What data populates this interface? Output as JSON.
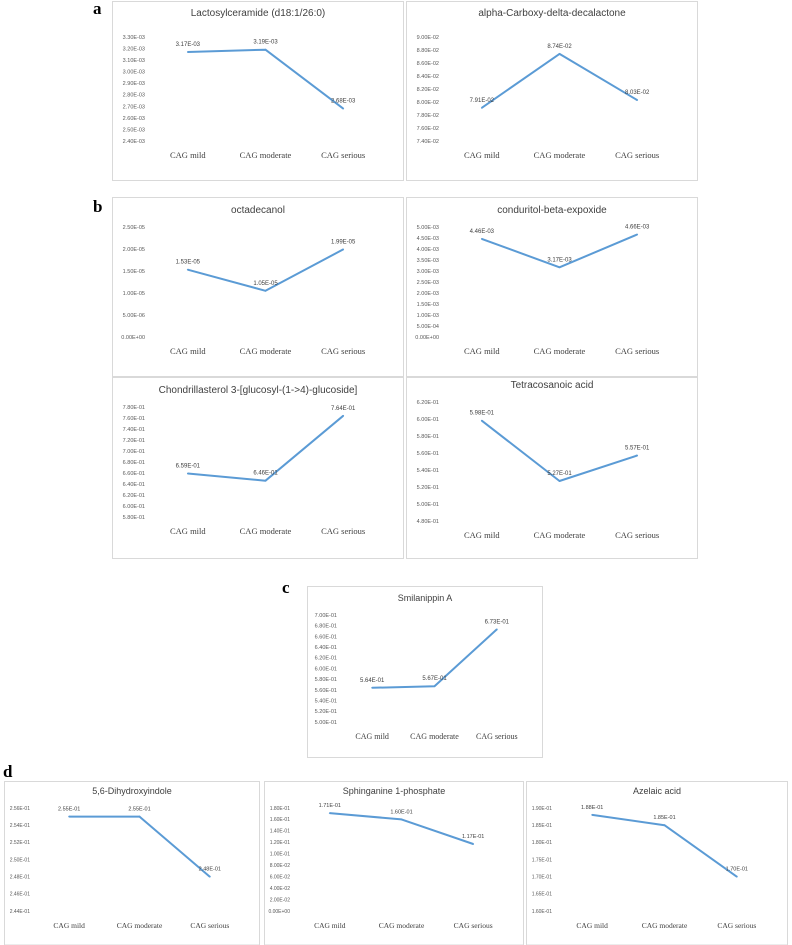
{
  "panel_labels": [
    "a",
    "b",
    "c",
    "d"
  ],
  "chart_data": [
    {
      "type": "line",
      "panel": "a",
      "title": "Lactosylceramide (d18:1/26:0)",
      "categories": [
        "CAG mild",
        "CAG moderate",
        "CAG serious"
      ],
      "values": [
        0.00317,
        0.00319,
        0.00268
      ],
      "value_labels": [
        "3.17E-03",
        "3.19E-03",
        "2.68E-03"
      ],
      "ylim": [
        0.0024,
        0.0033
      ],
      "ytick_step": 0.0001,
      "yticks": [
        "2.40E-03",
        "2.50E-03",
        "2.60E-03",
        "2.70E-03",
        "2.80E-03",
        "2.90E-03",
        "3.00E-03",
        "3.10E-03",
        "3.20E-03",
        "3.30E-03"
      ],
      "color": "#5b9bd5"
    },
    {
      "type": "line",
      "panel": "a",
      "title": "alpha-Carboxy-delta-decalactone",
      "categories": [
        "CAG mild",
        "CAG moderate",
        "CAG serious"
      ],
      "values": [
        0.0791,
        0.0874,
        0.0803
      ],
      "value_labels": [
        "7.91E-02",
        "8.74E-02",
        "8.03E-02"
      ],
      "ylim": [
        0.074,
        0.09
      ],
      "ytick_step": 0.002,
      "yticks": [
        "7.40E-02",
        "7.60E-02",
        "7.80E-02",
        "8.00E-02",
        "8.20E-02",
        "8.40E-02",
        "8.60E-02",
        "8.80E-02",
        "9.00E-02"
      ],
      "color": "#5b9bd5"
    },
    {
      "type": "line",
      "panel": "b",
      "title": "octadecanol",
      "categories": [
        "CAG mild",
        "CAG moderate",
        "CAG serious"
      ],
      "values": [
        1.53e-05,
        1.05e-05,
        1.99e-05
      ],
      "value_labels": [
        "1.53E-05",
        "1.05E-05",
        "1.99E-05"
      ],
      "ylim": [
        0,
        2.5e-05
      ],
      "ytick_step": 5e-06,
      "yticks": [
        "0.00E+00",
        "5.00E-06",
        "1.00E-05",
        "1.50E-05",
        "2.00E-05",
        "2.50E-05"
      ],
      "color": "#5b9bd5"
    },
    {
      "type": "line",
      "panel": "b",
      "title": "conduritol-beta-expoxide",
      "categories": [
        "CAG mild",
        "CAG moderate",
        "CAG serious"
      ],
      "values": [
        0.00446,
        0.00317,
        0.00466
      ],
      "value_labels": [
        "4.46E-03",
        "3.17E-03",
        "4.66E-03"
      ],
      "ylim": [
        0,
        0.005
      ],
      "ytick_step": 0.0005,
      "yticks": [
        "0.00E+00",
        "5.00E-04",
        "1.00E-03",
        "1.50E-03",
        "2.00E-03",
        "2.50E-03",
        "3.00E-03",
        "3.50E-03",
        "4.00E-03",
        "4.50E-03",
        "5.00E-03"
      ],
      "color": "#5b9bd5"
    },
    {
      "type": "line",
      "panel": "b",
      "title": "Chondrillasterol 3-[glucosyl-(1->4)-glucoside]",
      "categories": [
        "CAG mild",
        "CAG moderate",
        "CAG serious"
      ],
      "values": [
        0.659,
        0.646,
        0.764
      ],
      "value_labels": [
        "6.59E-01",
        "6.46E-01",
        "7.64E-01"
      ],
      "ylim": [
        0.58,
        0.78
      ],
      "ytick_step": 0.02,
      "yticks": [
        "5.80E-01",
        "6.00E-01",
        "6.20E-01",
        "6.40E-01",
        "6.60E-01",
        "6.80E-01",
        "7.00E-01",
        "7.20E-01",
        "7.40E-01",
        "7.60E-01",
        "7.80E-01"
      ],
      "color": "#5b9bd5"
    },
    {
      "type": "line",
      "panel": "b",
      "title": "Tetracosanoic acid",
      "categories": [
        "CAG mild",
        "CAG moderate",
        "CAG serious"
      ],
      "values": [
        0.598,
        0.527,
        0.557
      ],
      "value_labels": [
        "5.98E-01",
        "5.27E-01",
        "5.57E-01"
      ],
      "ylim": [
        0.48,
        0.62
      ],
      "ytick_step": 0.02,
      "yticks": [
        "4.80E-01",
        "5.00E-01",
        "5.20E-01",
        "5.40E-01",
        "5.60E-01",
        "5.80E-01",
        "6.00E-01",
        "6.20E-01"
      ],
      "color": "#5b9bd5"
    },
    {
      "type": "line",
      "panel": "c",
      "title": "Smilanippin A",
      "categories": [
        "CAG mild",
        "CAG moderate",
        "CAG serious"
      ],
      "values": [
        0.564,
        0.567,
        0.673
      ],
      "value_labels": [
        "5.64E-01",
        "5.67E-01",
        "6.73E-01"
      ],
      "ylim": [
        0.5,
        0.7
      ],
      "ytick_step": 0.02,
      "yticks": [
        "5.00E-01",
        "5.20E-01",
        "5.40E-01",
        "5.60E-01",
        "5.80E-01",
        "6.00E-01",
        "6.20E-01",
        "6.40E-01",
        "6.60E-01",
        "6.80E-01",
        "7.00E-01"
      ],
      "color": "#5b9bd5"
    },
    {
      "type": "line",
      "panel": "d",
      "title": "5,6-Dihydroxyindole",
      "categories": [
        "CAG mild",
        "CAG moderate",
        "CAG serious"
      ],
      "values": [
        0.255,
        0.255,
        0.248
      ],
      "value_labels": [
        "2.55E-01",
        "2.55E-01",
        "2.48E-01"
      ],
      "ylim": [
        0.244,
        0.256
      ],
      "ytick_step": 0.002,
      "yticks": [
        "2.44E-01",
        "2.46E-01",
        "2.48E-01",
        "2.50E-01",
        "2.52E-01",
        "2.54E-01",
        "2.56E-01"
      ],
      "color": "#5b9bd5"
    },
    {
      "type": "line",
      "panel": "d",
      "title": "Sphinganine 1-phosphate",
      "categories": [
        "CAG mild",
        "CAG moderate",
        "CAG serious"
      ],
      "values": [
        0.171,
        0.16,
        0.117
      ],
      "value_labels": [
        "1.71E-01",
        "1.60E-01",
        "1.17E-01"
      ],
      "ylim": [
        0,
        0.18
      ],
      "ytick_step": 0.02,
      "yticks": [
        "0.00E+00",
        "2.00E-02",
        "4.00E-02",
        "6.00E-02",
        "8.00E-02",
        "1.00E-01",
        "1.20E-01",
        "1.40E-01",
        "1.60E-01",
        "1.80E-01"
      ],
      "color": "#5b9bd5"
    },
    {
      "type": "line",
      "panel": "d",
      "title": "Azelaic acid",
      "categories": [
        "CAG mild",
        "CAG moderate",
        "CAG serious"
      ],
      "values": [
        0.188,
        0.185,
        0.17
      ],
      "value_labels": [
        "1.88E-01",
        "1.85E-01",
        "1.70E-01"
      ],
      "ylim": [
        0.16,
        0.19
      ],
      "ytick_step": 0.005,
      "yticks": [
        "1.60E-01",
        "1.65E-01",
        "1.70E-01",
        "1.75E-01",
        "1.80E-01",
        "1.85E-01",
        "1.90E-01"
      ],
      "color": "#5b9bd5"
    }
  ]
}
